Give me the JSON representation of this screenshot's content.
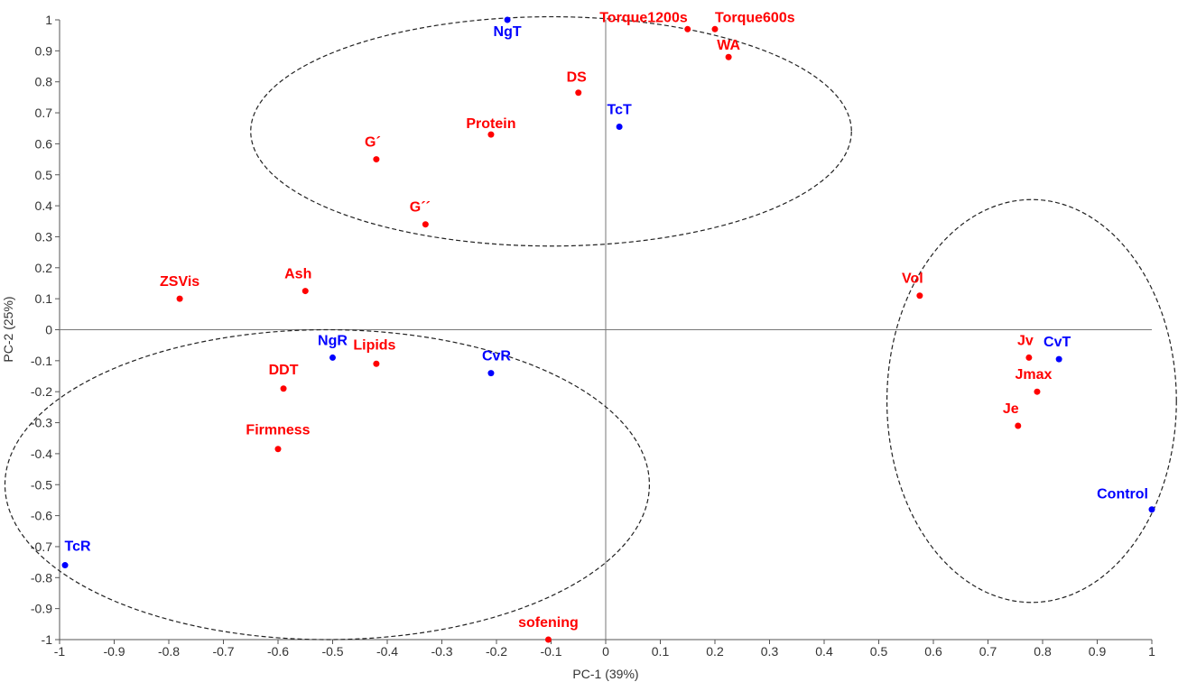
{
  "chart_data": {
    "type": "scatter",
    "title": "",
    "xlabel": "PC-1 (39%)",
    "ylabel": "PC-2 (25%)",
    "xlim": [
      -1,
      1
    ],
    "ylim": [
      -1,
      1
    ],
    "x_ticks": [
      "-1",
      "-0.9",
      "-0.8",
      "-0.7",
      "-0.6",
      "-0.5",
      "-0.4",
      "-0.3",
      "-0.2",
      "-0.1",
      "0",
      "0.1",
      "0.2",
      "0.3",
      "0.4",
      "0.5",
      "0.6",
      "0.7",
      "0.8",
      "0.9",
      "1"
    ],
    "y_ticks": [
      "1",
      "0.9",
      "0.8",
      "0.7",
      "0.6",
      "0.5",
      "0.4",
      "0.3",
      "0.2",
      "0.1",
      "0",
      "-0.1",
      "-0.2",
      "-0.3",
      "-0.4",
      "-0.5",
      "-0.6",
      "-0.7",
      "-0.8",
      "-0.9",
      "-1"
    ],
    "grid": false,
    "colors": {
      "variables": "#ff0000",
      "samples": "#0000ff",
      "axes": "#555555"
    },
    "series": [
      {
        "group": "variables",
        "points": [
          {
            "label": "Torque1200s",
            "x": 0.15,
            "y": 0.97
          },
          {
            "label": "Torque600s",
            "x": 0.2,
            "y": 0.97
          },
          {
            "label": "WA",
            "x": 0.225,
            "y": 0.88
          },
          {
            "label": "DS",
            "x": -0.05,
            "y": 0.765
          },
          {
            "label": "Protein",
            "x": -0.21,
            "y": 0.63
          },
          {
            "label": "G´",
            "x": -0.42,
            "y": 0.55
          },
          {
            "label": "G´´",
            "x": -0.33,
            "y": 0.34
          },
          {
            "label": "ZSVis",
            "x": -0.78,
            "y": 0.1
          },
          {
            "label": "Ash",
            "x": -0.55,
            "y": 0.125
          },
          {
            "label": "Lipids",
            "x": -0.42,
            "y": -0.11
          },
          {
            "label": "DDT",
            "x": -0.59,
            "y": -0.19
          },
          {
            "label": "Firmness",
            "x": -0.6,
            "y": -0.385
          },
          {
            "label": "sofening",
            "x": -0.105,
            "y": -1.0
          },
          {
            "label": "Vol",
            "x": 0.575,
            "y": 0.11
          },
          {
            "label": "Jv",
            "x": 0.775,
            "y": -0.09
          },
          {
            "label": "Jmax",
            "x": 0.79,
            "y": -0.2
          },
          {
            "label": "Je",
            "x": 0.755,
            "y": -0.31
          }
        ]
      },
      {
        "group": "samples",
        "points": [
          {
            "label": "NgT",
            "x": -0.18,
            "y": 1.0
          },
          {
            "label": "TcT",
            "x": 0.025,
            "y": 0.655
          },
          {
            "label": "NgR",
            "x": -0.5,
            "y": -0.09
          },
          {
            "label": "CvR",
            "x": -0.21,
            "y": -0.14
          },
          {
            "label": "CvT",
            "x": 0.83,
            "y": -0.095
          },
          {
            "label": "Control",
            "x": 1.0,
            "y": -0.58
          },
          {
            "label": "TcR",
            "x": -0.99,
            "y": -0.76
          }
        ]
      }
    ],
    "ellipses": [
      {
        "cx": -0.1,
        "cy": 0.64,
        "rx": 0.55,
        "ry": 0.37
      },
      {
        "cx": -0.51,
        "cy": -0.5,
        "rx": 0.59,
        "ry": 0.5
      },
      {
        "cx": 0.78,
        "cy": -0.23,
        "rx": 0.265,
        "ry": 0.65
      }
    ]
  }
}
